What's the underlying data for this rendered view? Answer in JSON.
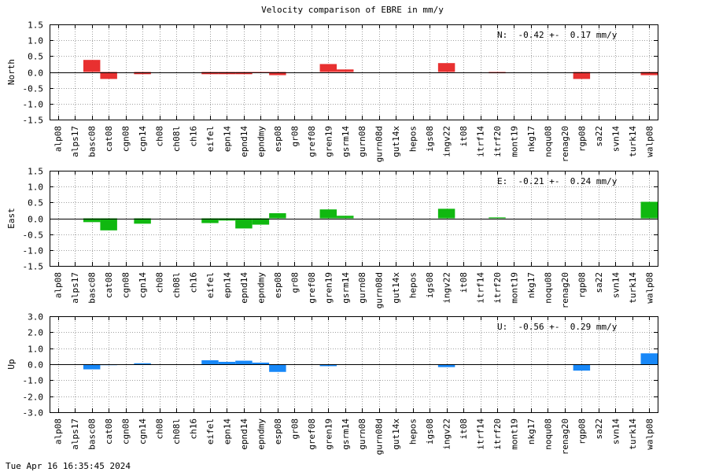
{
  "title": "Velocity comparison of EBRE in mm/y",
  "timestamp": "Tue Apr 16 16:35:45 2024",
  "chart_data": [
    {
      "type": "bar",
      "ylabel": "North",
      "color": "#e83030",
      "ylim": [
        -1.5,
        1.5
      ],
      "yticks": [
        "1.5",
        "1.0",
        "0.5",
        "0.0",
        "-0.5",
        "-1.0",
        "-1.5"
      ],
      "grid": true,
      "summary": "N:  -0.42 +-  0.17 mm/y",
      "categories": [
        "alp08",
        "alps17",
        "basc08",
        "cat08",
        "cgn08",
        "cgn14",
        "ch08",
        "ch08l",
        "ch16",
        "eifel",
        "epn14",
        "epnd14",
        "epndmy",
        "esp08",
        "gr08",
        "gref08",
        "gren19",
        "gsrm14",
        "gurn08",
        "gurn08d",
        "gut14x",
        "hepos",
        "igs08",
        "ingv22",
        "it08",
        "itrf14",
        "itrf20",
        "mont19",
        "nkg17",
        "noqu08",
        "renag20",
        "rgp08",
        "sa22",
        "svn14",
        "turk14",
        "walp08"
      ],
      "values": [
        0,
        0,
        0.38,
        -0.22,
        0,
        -0.07,
        0,
        0,
        0,
        -0.07,
        -0.07,
        -0.07,
        -0.03,
        -0.1,
        0,
        0,
        0.25,
        0.08,
        0,
        0,
        0,
        0,
        0,
        0.28,
        0,
        0,
        -0.04,
        0,
        0,
        0,
        0,
        -0.22,
        0,
        0,
        0,
        -0.1
      ]
    },
    {
      "type": "bar",
      "ylabel": "East",
      "color": "#10b810",
      "ylim": [
        -1.5,
        1.5
      ],
      "yticks": [
        "1.5",
        "1.0",
        "0.5",
        "0.0",
        "-0.5",
        "-1.0",
        "-1.5"
      ],
      "grid": true,
      "summary": "E:  -0.21 +-  0.24 mm/y",
      "categories": [
        "alp08",
        "alps17",
        "basc08",
        "cat08",
        "cgn08",
        "cgn14",
        "ch08",
        "ch08l",
        "ch16",
        "eifel",
        "epn14",
        "epnd14",
        "epndmy",
        "esp08",
        "gr08",
        "gref08",
        "gren19",
        "gsrm14",
        "gurn08",
        "gurn08d",
        "gut14x",
        "hepos",
        "igs08",
        "ingv22",
        "it08",
        "itrf14",
        "itrf20",
        "mont19",
        "nkg17",
        "noqu08",
        "renag20",
        "rgp08",
        "sa22",
        "svn14",
        "turk14",
        "walp08"
      ],
      "values": [
        0,
        0,
        -0.12,
        -0.38,
        0,
        -0.17,
        0,
        0,
        0,
        -0.15,
        -0.07,
        -0.32,
        -0.2,
        0.16,
        0,
        0,
        0.28,
        0.08,
        0,
        0,
        0,
        0,
        0,
        0.3,
        0,
        0,
        0.03,
        0,
        0,
        0,
        0,
        0,
        0,
        0,
        0,
        0.52
      ]
    },
    {
      "type": "bar",
      "ylabel": "Up",
      "color": "#1888f8",
      "ylim": [
        -3.0,
        3.0
      ],
      "yticks": [
        "3.0",
        "2.0",
        "1.0",
        "0.0",
        "-1.0",
        "-2.0",
        "-3.0"
      ],
      "grid": true,
      "summary": "U:  -0.56 +-  0.29 mm/y",
      "categories": [
        "alp08",
        "alps17",
        "basc08",
        "cat08",
        "cgn08",
        "cgn14",
        "ch08",
        "ch08l",
        "ch16",
        "eifel",
        "epn14",
        "epnd14",
        "epndmy",
        "esp08",
        "gr08",
        "gref08",
        "gren19",
        "gsrm14",
        "gurn08",
        "gurn08d",
        "gut14x",
        "hepos",
        "igs08",
        "ingv22",
        "it08",
        "itrf14",
        "itrf20",
        "mont19",
        "nkg17",
        "noqu08",
        "renag20",
        "rgp08",
        "sa22",
        "svn14",
        "turk14",
        "walp08"
      ],
      "values": [
        0,
        0,
        -0.32,
        -0.06,
        0,
        0.06,
        0,
        0,
        0,
        0.25,
        0.15,
        0.22,
        0.1,
        -0.48,
        0,
        0,
        -0.12,
        0,
        0,
        0,
        0,
        0,
        0,
        -0.18,
        0,
        0,
        0,
        0,
        0,
        0,
        0,
        -0.4,
        0,
        0,
        0,
        0.68
      ]
    }
  ]
}
